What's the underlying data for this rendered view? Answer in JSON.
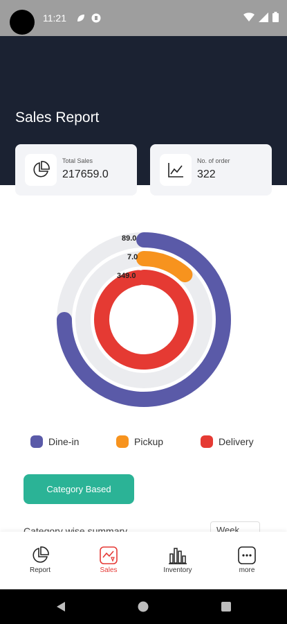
{
  "status_bar": {
    "time": "11:21"
  },
  "header": {
    "title": "Sales Report"
  },
  "cards": [
    {
      "label": "Total Sales",
      "value": "217659.0",
      "icon": "pie-chart-icon"
    },
    {
      "label": "No. of order",
      "value": "322",
      "icon": "line-chart-icon"
    }
  ],
  "chart_data": {
    "type": "pie",
    "series": [
      {
        "name": "Dine-in",
        "value": 89.0,
        "label": "89.0",
        "color": "#5a5aa8"
      },
      {
        "name": "Pickup",
        "value": 7.0,
        "label": "7.0",
        "color": "#f7931e"
      },
      {
        "name": "Delivery",
        "value": 349.0,
        "label": "349.0",
        "color": "#e53a33"
      }
    ],
    "track_color": "#ebecef"
  },
  "legend": [
    {
      "label": "Dine-in",
      "color": "#5a5aa8"
    },
    {
      "label": "Pickup",
      "color": "#f7931e"
    },
    {
      "label": "Delivery",
      "color": "#e53a33"
    }
  ],
  "category_button": {
    "label": "Category Based"
  },
  "cutoff": {
    "text": "Category wise summary",
    "select": "Week"
  },
  "bottom_nav": [
    {
      "label": "Report",
      "icon": "pie-chart-icon",
      "active": false
    },
    {
      "label": "Sales",
      "icon": "sales-chart-icon",
      "active": true
    },
    {
      "label": "Inventory",
      "icon": "bar-chart-icon",
      "active": false
    },
    {
      "label": "more",
      "icon": "more-icon",
      "active": false
    }
  ],
  "colors": {
    "header_bg": "#1b2232",
    "accent_green": "#2bb396",
    "active_red": "#e53935"
  }
}
